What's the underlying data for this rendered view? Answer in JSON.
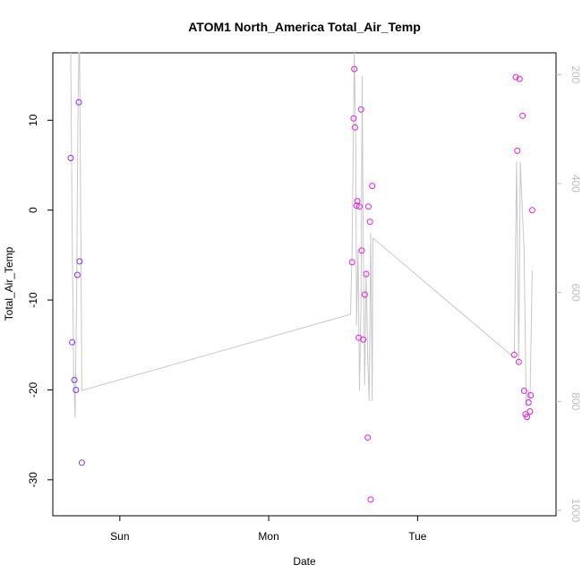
{
  "chart_data": {
    "type": "scatter",
    "title": "ATOM1 North_America Total_Air_Temp",
    "xlabel": "Date",
    "ylabel": "Total_Air_Temp",
    "x_unit": "days",
    "xlim": [
      -0.45,
      2.93
    ],
    "ylim": [
      -34.0,
      17.5
    ],
    "y_ticks": [
      -30,
      -20,
      -10,
      0,
      10
    ],
    "x_ticks": [
      {
        "label": "Sun",
        "value": 0
      },
      {
        "label": "Mon",
        "value": 1
      },
      {
        "label": "Tue",
        "value": 2
      }
    ],
    "y2lim": [
      1010,
      160
    ],
    "y2_ticks": [
      200,
      400,
      600,
      800,
      1000
    ],
    "grid": false,
    "series": [
      {
        "type": "points",
        "color": "#7a33ff",
        "points": [
          [
            -0.33,
            5.8
          ],
          [
            -0.32,
            -14.7
          ],
          [
            -0.305,
            -18.9
          ],
          [
            -0.295,
            -20.0
          ],
          [
            -0.285,
            -7.2
          ],
          [
            -0.275,
            12.0
          ],
          [
            -0.27,
            -5.7
          ],
          [
            -0.255,
            -28.1
          ]
        ]
      },
      {
        "type": "points",
        "color": "#e020e0",
        "points": [
          [
            1.56,
            -5.8
          ],
          [
            1.57,
            10.2
          ],
          [
            1.575,
            15.7
          ],
          [
            1.58,
            9.2
          ],
          [
            1.59,
            0.5
          ],
          [
            1.595,
            1.0
          ],
          [
            1.605,
            -14.2
          ],
          [
            1.61,
            0.4
          ],
          [
            1.62,
            11.2
          ],
          [
            1.625,
            -4.5
          ],
          [
            1.635,
            -14.4
          ],
          [
            1.645,
            -9.4
          ],
          [
            1.655,
            -7.1
          ],
          [
            1.665,
            -25.3
          ],
          [
            1.67,
            0.4
          ],
          [
            1.68,
            -1.3
          ],
          [
            1.685,
            -32.2
          ],
          [
            1.695,
            2.7
          ],
          [
            2.65,
            -16.1
          ],
          [
            2.66,
            14.8
          ],
          [
            2.67,
            6.6
          ],
          [
            2.68,
            -16.9
          ],
          [
            2.685,
            14.6
          ],
          [
            2.705,
            10.5
          ],
          [
            2.715,
            -20.1
          ],
          [
            2.725,
            -22.7
          ],
          [
            2.735,
            -23.0
          ],
          [
            2.745,
            -21.4
          ],
          [
            2.755,
            -22.4
          ],
          [
            2.76,
            -20.6
          ],
          [
            2.77,
            0.0
          ]
        ]
      },
      {
        "type": "line",
        "axis": "right",
        "color": "#c8c8c8",
        "points": [
          [
            -0.33,
            160
          ],
          [
            -0.32,
            500
          ],
          [
            -0.31,
            750
          ],
          [
            -0.3,
            830
          ],
          [
            -0.29,
            600
          ],
          [
            -0.282,
            300
          ],
          [
            -0.275,
            160
          ],
          [
            -0.27,
            160
          ],
          [
            -0.262,
            500
          ],
          [
            -0.255,
            780
          ],
          [
            1.55,
            640
          ],
          [
            1.56,
            520
          ],
          [
            1.575,
            160
          ],
          [
            1.585,
            330
          ],
          [
            1.59,
            660
          ],
          [
            1.6,
            520
          ],
          [
            1.61,
            780
          ],
          [
            1.62,
            620
          ],
          [
            1.628,
            202
          ],
          [
            1.635,
            520
          ],
          [
            1.645,
            770
          ],
          [
            1.655,
            560
          ],
          [
            1.665,
            720
          ],
          [
            1.675,
            800
          ],
          [
            1.685,
            490
          ],
          [
            1.695,
            800
          ],
          [
            1.7,
            500
          ],
          [
            2.65,
            720
          ],
          [
            2.665,
            360
          ],
          [
            2.68,
            730
          ],
          [
            2.69,
            360
          ],
          [
            2.7,
            430
          ],
          [
            2.715,
            520
          ],
          [
            2.73,
            810
          ],
          [
            2.745,
            780
          ],
          [
            2.755,
            800
          ],
          [
            2.77,
            560
          ]
        ]
      }
    ]
  }
}
